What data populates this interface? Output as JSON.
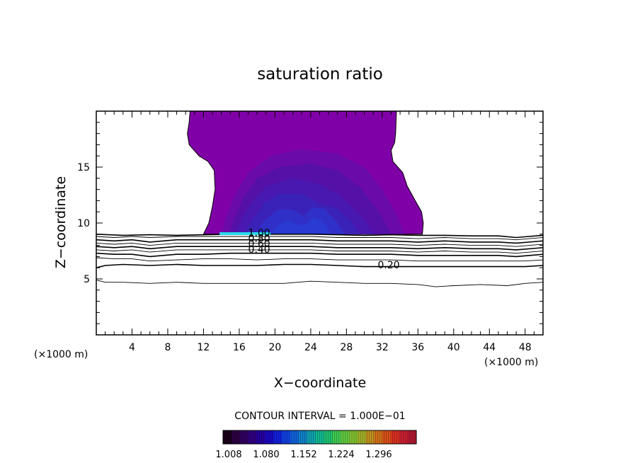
{
  "chart_data": {
    "type": "contour",
    "title": "saturation ratio",
    "xlabel": "X−coordinate",
    "ylabel": "Z−coordinate",
    "x_unit_left": "(×1000 m)",
    "x_unit_right": "(×1000 m)",
    "xlim": [
      0,
      50
    ],
    "ylim": [
      0,
      20
    ],
    "x_ticks": [
      4,
      8,
      12,
      16,
      20,
      24,
      28,
      32,
      36,
      40,
      44,
      48
    ],
    "x_tick_labels": [
      "4",
      "8",
      "12",
      "16",
      "20",
      "24",
      "28",
      "32",
      "36",
      "40",
      "44",
      "48"
    ],
    "y_ticks": [
      5,
      10,
      15
    ],
    "y_tick_labels": [
      "5",
      "10",
      "15"
    ],
    "contour_interval_text": "CONTOUR INTERVAL = 1.000E−01",
    "contour_levels": [
      0.1,
      0.2,
      0.3,
      0.4,
      0.5,
      0.6,
      0.7,
      0.8,
      0.9,
      1.0
    ],
    "contour_labels": [
      {
        "text": "0.20",
        "x": 31.5,
        "y": 6.0
      },
      {
        "text": "0.40",
        "x": 17.0,
        "y": 7.4
      },
      {
        "text": "0.60",
        "x": 17.0,
        "y": 7.9
      },
      {
        "text": "0.80",
        "x": 17.0,
        "y": 8.4
      },
      {
        "text": "1.00",
        "x": 17.0,
        "y": 8.9
      }
    ],
    "contour_lines": [
      {
        "level": 0.1,
        "points": [
          [
            0,
            4.9
          ],
          [
            1,
            4.7
          ],
          [
            3,
            4.7
          ],
          [
            6,
            4.6
          ],
          [
            9,
            4.7
          ],
          [
            12,
            4.6
          ],
          [
            15,
            4.6
          ],
          [
            18,
            4.6
          ],
          [
            21,
            4.6
          ],
          [
            24,
            4.8
          ],
          [
            27,
            4.7
          ],
          [
            30,
            4.6
          ],
          [
            33,
            4.6
          ],
          [
            36,
            4.5
          ],
          [
            38,
            4.3
          ],
          [
            40,
            4.4
          ],
          [
            43,
            4.5
          ],
          [
            46,
            4.4
          ],
          [
            48,
            4.6
          ],
          [
            50,
            4.7
          ]
        ]
      },
      {
        "level": 0.2,
        "points": [
          [
            0,
            6.0
          ],
          [
            1,
            6.2
          ],
          [
            3,
            6.3
          ],
          [
            6,
            6.2
          ],
          [
            9,
            6.3
          ],
          [
            12,
            6.2
          ],
          [
            15,
            6.2
          ],
          [
            18,
            6.2
          ],
          [
            21,
            6.3
          ],
          [
            24,
            6.3
          ],
          [
            27,
            6.2
          ],
          [
            30,
            6.1
          ],
          [
            33,
            6.1
          ],
          [
            36,
            6.1
          ],
          [
            39,
            6.1
          ],
          [
            42,
            6.1
          ],
          [
            45,
            6.1
          ],
          [
            48,
            6.1
          ],
          [
            50,
            6.2
          ]
        ]
      },
      {
        "level": 0.3,
        "points": [
          [
            0,
            6.9
          ],
          [
            2,
            6.8
          ],
          [
            4,
            6.8
          ],
          [
            6,
            6.6
          ],
          [
            9,
            6.7
          ],
          [
            12,
            6.8
          ],
          [
            15,
            6.8
          ],
          [
            18,
            6.7
          ],
          [
            21,
            6.8
          ],
          [
            24,
            6.8
          ],
          [
            27,
            6.7
          ],
          [
            30,
            6.7
          ],
          [
            33,
            6.7
          ],
          [
            36,
            6.6
          ],
          [
            39,
            6.6
          ],
          [
            42,
            6.6
          ],
          [
            45,
            6.6
          ],
          [
            48,
            6.6
          ],
          [
            50,
            6.7
          ]
        ]
      },
      {
        "level": 0.4,
        "points": [
          [
            0,
            7.3
          ],
          [
            2,
            7.2
          ],
          [
            4,
            7.2
          ],
          [
            6,
            7.0
          ],
          [
            9,
            7.2
          ],
          [
            12,
            7.2
          ],
          [
            15,
            7.3
          ],
          [
            18,
            7.3
          ],
          [
            21,
            7.3
          ],
          [
            24,
            7.3
          ],
          [
            27,
            7.2
          ],
          [
            30,
            7.2
          ],
          [
            33,
            7.2
          ],
          [
            36,
            7.1
          ],
          [
            39,
            7.1
          ],
          [
            42,
            7.1
          ],
          [
            45,
            7.1
          ],
          [
            47,
            7.0
          ],
          [
            50,
            7.2
          ]
        ]
      },
      {
        "level": 0.5,
        "points": [
          [
            0,
            7.6
          ],
          [
            2,
            7.5
          ],
          [
            4,
            7.6
          ],
          [
            6,
            7.4
          ],
          [
            9,
            7.6
          ],
          [
            12,
            7.6
          ],
          [
            15,
            7.6
          ],
          [
            18,
            7.6
          ],
          [
            21,
            7.6
          ],
          [
            24,
            7.6
          ],
          [
            27,
            7.5
          ],
          [
            30,
            7.5
          ],
          [
            33,
            7.5
          ],
          [
            36,
            7.4
          ],
          [
            39,
            7.5
          ],
          [
            42,
            7.4
          ],
          [
            45,
            7.4
          ],
          [
            47,
            7.3
          ],
          [
            50,
            7.5
          ]
        ]
      },
      {
        "level": 0.6,
        "points": [
          [
            0,
            7.9
          ],
          [
            2,
            7.8
          ],
          [
            4,
            7.9
          ],
          [
            6,
            7.7
          ],
          [
            9,
            7.9
          ],
          [
            12,
            7.9
          ],
          [
            15,
            7.9
          ],
          [
            18,
            7.9
          ],
          [
            21,
            7.9
          ],
          [
            24,
            7.9
          ],
          [
            27,
            7.8
          ],
          [
            30,
            7.8
          ],
          [
            33,
            7.8
          ],
          [
            36,
            7.7
          ],
          [
            39,
            7.8
          ],
          [
            42,
            7.7
          ],
          [
            45,
            7.7
          ],
          [
            47,
            7.6
          ],
          [
            50,
            7.8
          ]
        ]
      },
      {
        "level": 0.7,
        "points": [
          [
            0,
            8.2
          ],
          [
            2,
            8.1
          ],
          [
            4,
            8.2
          ],
          [
            6,
            8.0
          ],
          [
            9,
            8.2
          ],
          [
            12,
            8.2
          ],
          [
            15,
            8.2
          ],
          [
            18,
            8.2
          ],
          [
            21,
            8.2
          ],
          [
            24,
            8.2
          ],
          [
            27,
            8.1
          ],
          [
            30,
            8.1
          ],
          [
            33,
            8.1
          ],
          [
            36,
            8.0
          ],
          [
            39,
            8.1
          ],
          [
            42,
            8.0
          ],
          [
            45,
            8.0
          ],
          [
            47,
            7.9
          ],
          [
            50,
            8.1
          ]
        ]
      },
      {
        "level": 0.8,
        "points": [
          [
            0,
            8.5
          ],
          [
            2,
            8.4
          ],
          [
            4,
            8.5
          ],
          [
            6,
            8.3
          ],
          [
            9,
            8.5
          ],
          [
            12,
            8.5
          ],
          [
            15,
            8.5
          ],
          [
            18,
            8.5
          ],
          [
            21,
            8.5
          ],
          [
            24,
            8.5
          ],
          [
            27,
            8.4
          ],
          [
            30,
            8.4
          ],
          [
            33,
            8.4
          ],
          [
            36,
            8.3
          ],
          [
            39,
            8.4
          ],
          [
            42,
            8.3
          ],
          [
            45,
            8.3
          ],
          [
            47,
            8.2
          ],
          [
            50,
            8.4
          ]
        ]
      },
      {
        "level": 0.9,
        "points": [
          [
            0,
            8.8
          ],
          [
            2,
            8.7
          ],
          [
            4,
            8.8
          ],
          [
            6,
            8.7
          ],
          [
            9,
            8.8
          ],
          [
            12,
            8.8
          ],
          [
            15,
            8.8
          ],
          [
            18,
            8.8
          ],
          [
            21,
            8.8
          ],
          [
            24,
            8.8
          ],
          [
            27,
            8.7
          ],
          [
            30,
            8.7
          ],
          [
            33,
            8.7
          ],
          [
            36,
            8.6
          ],
          [
            39,
            8.7
          ],
          [
            42,
            8.6
          ],
          [
            45,
            8.6
          ],
          [
            47,
            8.5
          ],
          [
            50,
            8.7
          ]
        ]
      },
      {
        "level": 1.0,
        "points": [
          [
            0,
            9.0
          ],
          [
            3,
            8.9
          ],
          [
            6,
            8.95
          ],
          [
            9,
            8.9
          ],
          [
            12,
            8.95
          ],
          [
            15,
            9.0
          ],
          [
            18,
            9.0
          ],
          [
            21,
            9.0
          ],
          [
            24,
            9.0
          ],
          [
            27,
            8.95
          ],
          [
            30,
            8.9
          ],
          [
            33,
            8.95
          ],
          [
            36,
            8.9
          ],
          [
            39,
            8.9
          ],
          [
            42,
            8.85
          ],
          [
            45,
            8.85
          ],
          [
            47,
            8.7
          ],
          [
            50,
            8.9
          ]
        ]
      }
    ],
    "filled_regions": [
      {
        "level": 1.008,
        "color": "#8000a8",
        "points": [
          [
            10.5,
            20
          ],
          [
            10.4,
            19
          ],
          [
            10.2,
            18
          ],
          [
            10.4,
            17
          ],
          [
            11.5,
            16
          ],
          [
            12.5,
            15.5
          ],
          [
            13.2,
            14.7
          ],
          [
            13.3,
            13
          ],
          [
            13.0,
            11.5
          ],
          [
            12.6,
            10
          ],
          [
            12.0,
            9.0
          ],
          [
            36.5,
            9.0
          ],
          [
            36.6,
            10
          ],
          [
            36.4,
            11
          ],
          [
            35.7,
            12
          ],
          [
            34.8,
            13.3
          ],
          [
            34.3,
            14.5
          ],
          [
            33.2,
            15.5
          ],
          [
            33.0,
            16.5
          ],
          [
            33.4,
            17.2
          ],
          [
            33.5,
            18
          ],
          [
            33.6,
            20
          ]
        ]
      },
      {
        "level": 1.04,
        "color": "#6a0aa8",
        "points": [
          [
            14,
            9.0
          ],
          [
            14.5,
            10.5
          ],
          [
            15.5,
            12.5
          ],
          [
            17,
            14.5
          ],
          [
            19.5,
            16
          ],
          [
            23,
            16.6
          ],
          [
            27,
            16.2
          ],
          [
            30,
            15
          ],
          [
            32,
            13
          ],
          [
            33.5,
            11
          ],
          [
            34.5,
            9.0
          ]
        ]
      },
      {
        "level": 1.08,
        "color": "#5510a8",
        "points": [
          [
            14.8,
            9.0
          ],
          [
            15.5,
            10.5
          ],
          [
            16.5,
            12.3
          ],
          [
            18,
            14
          ],
          [
            20.5,
            15
          ],
          [
            24,
            15.3
          ],
          [
            27,
            14.7
          ],
          [
            29.5,
            13.2
          ],
          [
            31.5,
            11.2
          ],
          [
            33,
            9.0
          ]
        ]
      },
      {
        "level": 1.12,
        "color": "#4818b0",
        "points": [
          [
            15.5,
            9.0
          ],
          [
            16.3,
            10.4
          ],
          [
            17.5,
            12
          ],
          [
            19,
            13.3
          ],
          [
            22,
            14
          ],
          [
            25,
            13.5
          ],
          [
            27.5,
            12.3
          ],
          [
            29.5,
            10.8
          ],
          [
            31,
            9.0
          ]
        ]
      },
      {
        "level": 1.16,
        "color": "#3a22b8",
        "points": [
          [
            16.5,
            9.0
          ],
          [
            17.5,
            10.3
          ],
          [
            18.8,
            11.8
          ],
          [
            20.5,
            12.6
          ],
          [
            23,
            12.6
          ],
          [
            25,
            11.7
          ],
          [
            27,
            11.3
          ],
          [
            28.5,
            10.2
          ],
          [
            29.5,
            9.0
          ]
        ]
      },
      {
        "level": 1.2,
        "color": "#3030c8",
        "points": [
          [
            17.8,
            9.0
          ],
          [
            18.8,
            10.2
          ],
          [
            20.3,
            11.2
          ],
          [
            22,
            11.2
          ],
          [
            23.2,
            10.6
          ],
          [
            24.2,
            11.4
          ],
          [
            25.5,
            11.3
          ],
          [
            26.8,
            10.2
          ],
          [
            27.8,
            9.0
          ]
        ]
      },
      {
        "level": 1.25,
        "color": "#2a3ad2",
        "points": [
          [
            19.5,
            9.0
          ],
          [
            20.3,
            9.8
          ],
          [
            21.5,
            10.3
          ],
          [
            22.5,
            9.8
          ],
          [
            23.5,
            9.9
          ],
          [
            24.3,
            10.5
          ],
          [
            25.3,
            10.2
          ],
          [
            26.3,
            9.0
          ]
        ]
      }
    ],
    "saturation_band": {
      "level": 1.296,
      "color": "#28d8e8",
      "x_start": 13.8,
      "x_end": 19.5,
      "y": 9.05
    },
    "colorbar": {
      "tick_labels": [
        "1.008",
        "1.080",
        "1.152",
        "1.224",
        "1.296"
      ],
      "colors": [
        "#180018",
        "#2a0040",
        "#300060",
        "#300080",
        "#2400a0",
        "#1808c0",
        "#1020d8",
        "#1040e0",
        "#1060d8",
        "#1080c8",
        "#10a0b0",
        "#10b890",
        "#20c070",
        "#40c850",
        "#60c840",
        "#80c030",
        "#a0b028",
        "#c09020",
        "#d07018",
        "#d85018",
        "#d83020",
        "#c82030",
        "#b01830"
      ]
    }
  }
}
